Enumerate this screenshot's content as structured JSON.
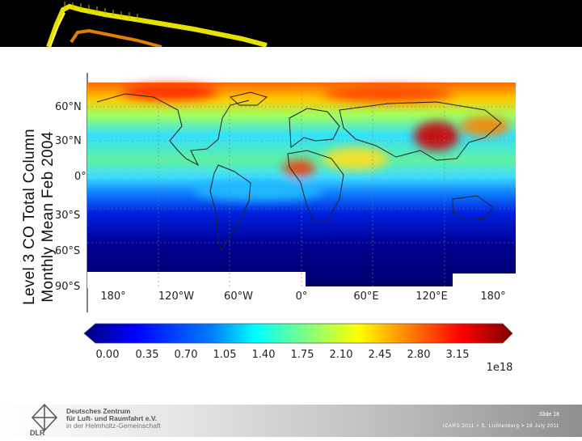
{
  "title": {
    "line1": "Level 3 CO Total Column",
    "line2": "Monthly Mean Feb 2004"
  },
  "map": {
    "lat_labels": [
      "60°N",
      "30°N",
      "0°",
      "30°S",
      "60°S",
      "90°S"
    ],
    "lon_labels": [
      "180°",
      "120°W",
      "60°W",
      "0°",
      "60°E",
      "120°E",
      "180°"
    ]
  },
  "colorbar": {
    "ticks": [
      "0.00",
      "0.35",
      "0.70",
      "1.05",
      "1.40",
      "1.75",
      "2.10",
      "2.45",
      "2.80",
      "3.15"
    ],
    "multiplier": "1e18",
    "colors": [
      "#00007f",
      "#0000ff",
      "#007fff",
      "#00ffff",
      "#7fff7f",
      "#ffff00",
      "#ff7f00",
      "#ff0000",
      "#7f0000"
    ]
  },
  "footer": {
    "org_line1": "Deutsches Zentrum",
    "org_line2": "für Luft- und Raumfahrt e.V.",
    "org_line3": "in der Helmholtz-Gemeinschaft",
    "org_short": "DLR",
    "slide": "Slide 18",
    "credit": "ICARS 2011 > S. Lichtenberg > 28 July 2011"
  },
  "colors": {
    "banner_bg": "#000000",
    "banner_track_yellow": "#e8e000",
    "banner_track_orange": "#e08000"
  }
}
